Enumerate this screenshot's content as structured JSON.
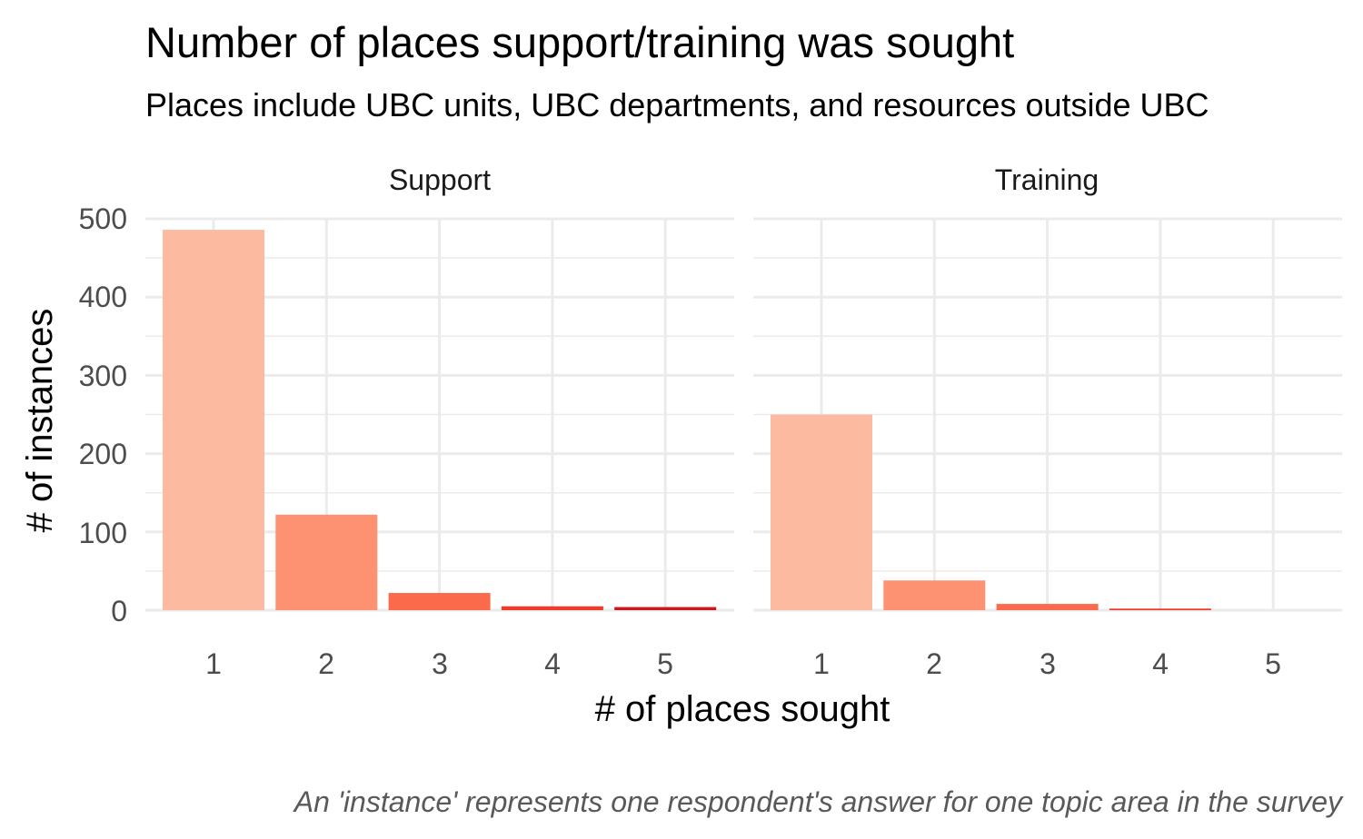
{
  "chart_data": {
    "type": "bar",
    "title": "Number of places support/training was sought",
    "subtitle": "Places include UBC units, UBC departments, and resources outside UBC",
    "xlabel": "# of places sought",
    "ylabel": "# of instances",
    "caption": "An 'instance' represents one respondent's answer for one topic area in the survey",
    "categories": [
      "1",
      "2",
      "3",
      "4",
      "5"
    ],
    "ylim": [
      0,
      500
    ],
    "yticks": [
      "0",
      "100",
      "200",
      "300",
      "400",
      "500"
    ],
    "grid": true,
    "legend": "none",
    "bar_colors": [
      "#fcbba1",
      "#fc9272",
      "#fb6a4a",
      "#ef3b2c",
      "#cb181d"
    ],
    "facets": [
      {
        "name": "Support",
        "values": [
          486,
          122,
          22,
          5,
          4
        ]
      },
      {
        "name": "Training",
        "values": [
          250,
          38,
          8,
          2,
          0
        ]
      }
    ]
  }
}
